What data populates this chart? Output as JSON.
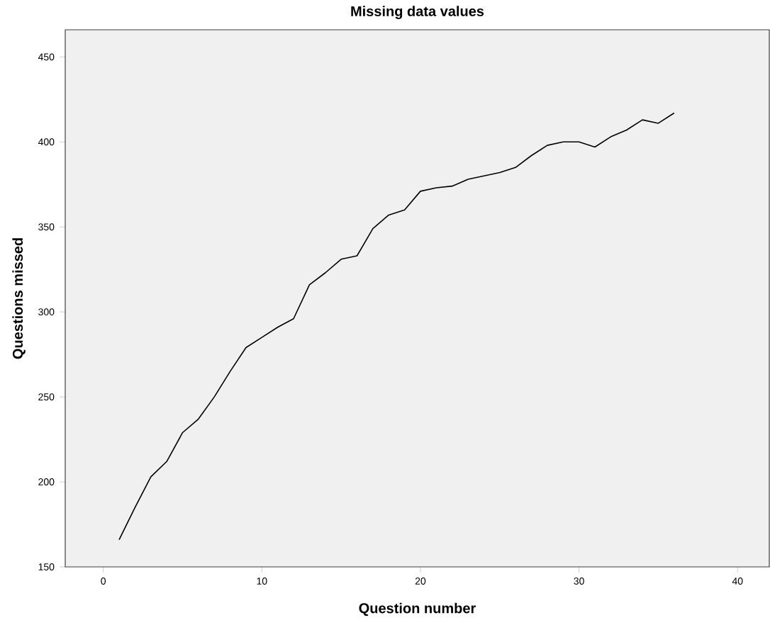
{
  "chart_data": {
    "type": "line",
    "title": "Missing data values",
    "xlabel": "Question number",
    "ylabel": "Questions missed",
    "x": [
      1,
      2,
      3,
      4,
      5,
      6,
      7,
      8,
      9,
      10,
      11,
      12,
      13,
      14,
      15,
      16,
      17,
      18,
      19,
      20,
      21,
      22,
      23,
      24,
      25,
      26,
      27,
      28,
      29,
      30,
      31,
      32,
      33,
      34,
      35,
      36
    ],
    "values": [
      166,
      185,
      203,
      212,
      229,
      237,
      250,
      265,
      279,
      285,
      291,
      296,
      316,
      323,
      331,
      333,
      349,
      357,
      360,
      371,
      373,
      374,
      378,
      380,
      382,
      385,
      392,
      398,
      400,
      400,
      397,
      403,
      407,
      413,
      411,
      417
    ],
    "color": "#000000",
    "xlim": [
      -2.4,
      42
    ],
    "ylim": [
      150,
      466
    ],
    "xticks": [
      0,
      10,
      20,
      30,
      40
    ],
    "yticks": [
      150,
      200,
      250,
      300,
      350,
      400,
      450
    ],
    "grid": false,
    "marker": "none",
    "line_style": "solid"
  }
}
